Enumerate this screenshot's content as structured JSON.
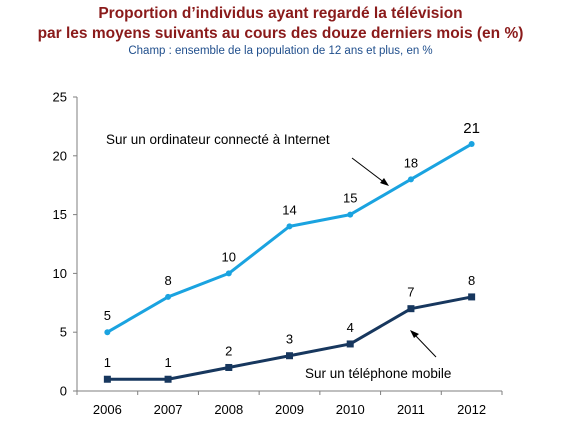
{
  "header": {
    "title_line1": "Proportion d’individus ayant regardé la télévision",
    "title_line2": "par les moyens suivants au cours des douze derniers mois (en %)",
    "subtitle": "Champ : ensemble de la population de 12 ans et plus, en %"
  },
  "colors": {
    "title": "#8a1a1a",
    "subtitle": "#1f4e8c",
    "series_ordinateur": "#1aa3e0",
    "series_telephone": "#17375e"
  },
  "chart_data": {
    "type": "line",
    "title": "Proportion d’individus ayant regardé la télévision par les moyens suivants au cours des douze derniers mois (en %)",
    "subtitle": "Champ : ensemble de la population de 12 ans et plus, en %",
    "x": [
      "2006",
      "2007",
      "2008",
      "2009",
      "2010",
      "2011",
      "2012"
    ],
    "ylim": [
      0,
      25
    ],
    "yticks": [
      0,
      5,
      10,
      15,
      20,
      25
    ],
    "grid": false,
    "series": [
      {
        "name": "Sur un ordinateur connecté à Internet",
        "values": [
          5,
          8,
          10,
          14,
          15,
          18,
          21
        ],
        "marker": "circle"
      },
      {
        "name": "Sur un téléphone mobile",
        "values": [
          1,
          1,
          2,
          3,
          4,
          7,
          8
        ],
        "marker": "square"
      }
    ]
  }
}
